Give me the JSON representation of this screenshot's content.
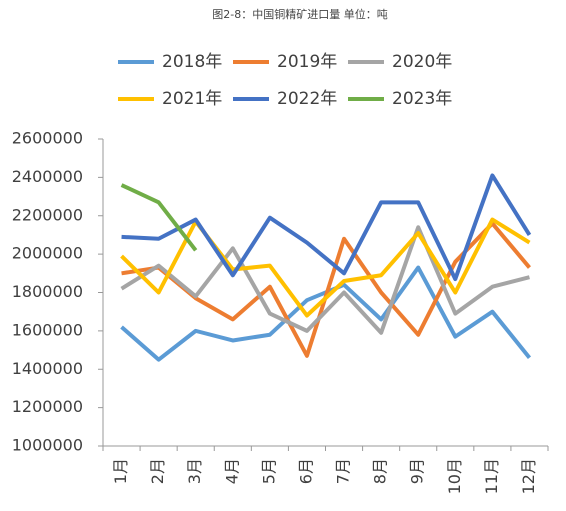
{
  "chart_data": {
    "type": "line",
    "title": "图2-8：中国铜精矿进口量 单位：吨",
    "categories": [
      "1月",
      "2月",
      "3月",
      "4月",
      "5月",
      "6月",
      "7月",
      "8月",
      "9月",
      "10月",
      "11月",
      "12月"
    ],
    "series": [
      {
        "name": "2018年",
        "color": "#5b9bd5",
        "values": [
          1620000,
          1450000,
          1600000,
          1550000,
          1580000,
          1760000,
          1840000,
          1660000,
          1930000,
          1570000,
          1700000,
          1460000
        ]
      },
      {
        "name": "2019年",
        "color": "#ed7d31",
        "values": [
          1900000,
          1930000,
          1770000,
          1660000,
          1830000,
          1470000,
          2080000,
          1800000,
          1580000,
          1960000,
          2160000,
          1930000
        ]
      },
      {
        "name": "2020年",
        "color": "#a5a5a5",
        "values": [
          1820000,
          1940000,
          1780000,
          2030000,
          1690000,
          1600000,
          1800000,
          1590000,
          2140000,
          1690000,
          1830000,
          1880000
        ]
      },
      {
        "name": "2021年",
        "color": "#ffc000",
        "values": [
          1990000,
          1800000,
          2170000,
          1920000,
          1940000,
          1680000,
          1860000,
          1890000,
          2110000,
          1800000,
          2180000,
          2060000
        ]
      },
      {
        "name": "2022年",
        "color": "#4472c4",
        "values": [
          2090000,
          2080000,
          2180000,
          1890000,
          2190000,
          2060000,
          1900000,
          2270000,
          2270000,
          1870000,
          2410000,
          2100000
        ]
      },
      {
        "name": "2023年",
        "color": "#70ad47",
        "values": [
          2360000,
          2270000,
          2020000,
          null,
          null,
          null,
          null,
          null,
          null,
          null,
          null,
          null
        ]
      }
    ],
    "ylim": [
      1000000,
      2600000
    ],
    "yticks": [
      1000000,
      1200000,
      1400000,
      1600000,
      1800000,
      2000000,
      2200000,
      2400000,
      2600000
    ]
  }
}
